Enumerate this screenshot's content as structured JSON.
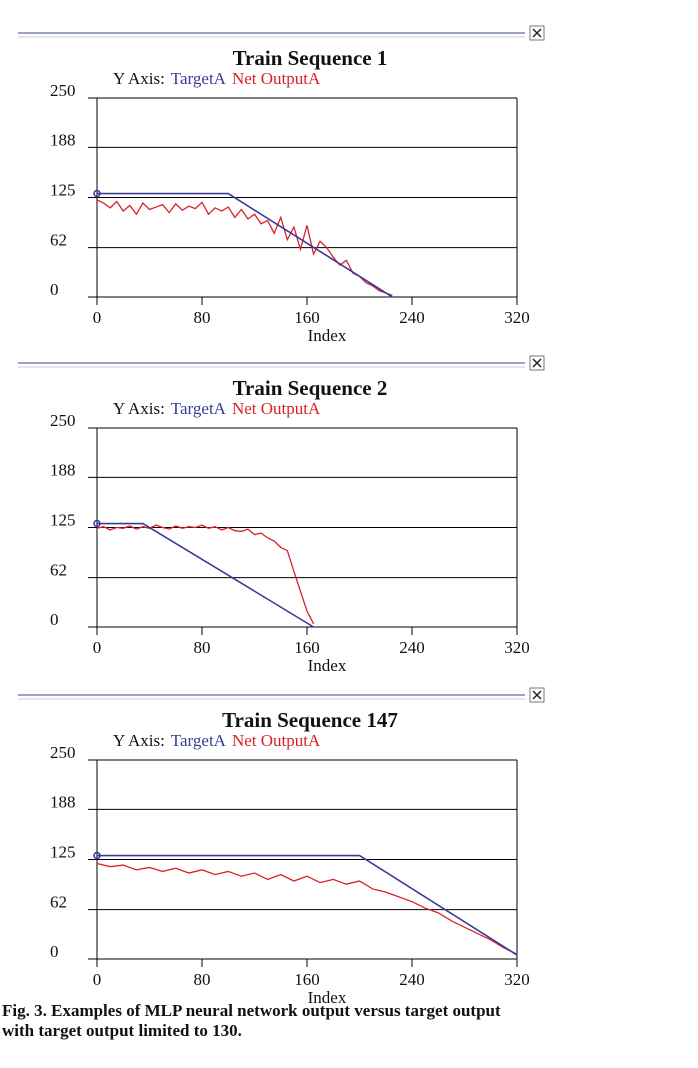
{
  "chart_data": [
    {
      "type": "line",
      "title": "Train Sequence 1",
      "legend_title": "Y Axis:",
      "xlabel": "Index",
      "xlim": [
        0,
        320
      ],
      "xticks": [
        0,
        80,
        160,
        240,
        320
      ],
      "ylim": [
        0,
        250
      ],
      "yticks": [
        0,
        62,
        125,
        188,
        250
      ],
      "grid": true,
      "series": [
        {
          "name": "TargetA",
          "color": "#3a3a9c",
          "x": [
            0,
            100,
            225
          ],
          "values": [
            130,
            130,
            0
          ]
        },
        {
          "name": "Net OutputA",
          "color": "#d8222a",
          "x": [
            0,
            5,
            10,
            15,
            20,
            25,
            30,
            35,
            40,
            45,
            50,
            55,
            60,
            65,
            70,
            75,
            80,
            85,
            90,
            95,
            100,
            105,
            110,
            115,
            120,
            125,
            130,
            135,
            140,
            145,
            150,
            155,
            160,
            165,
            170,
            175,
            180,
            185,
            190,
            195,
            200,
            205,
            210,
            215,
            220,
            225
          ],
          "values": [
            122,
            118,
            112,
            120,
            108,
            115,
            104,
            118,
            110,
            113,
            116,
            106,
            117,
            109,
            114,
            111,
            119,
            104,
            112,
            108,
            113,
            100,
            110,
            98,
            104,
            92,
            96,
            80,
            100,
            72,
            88,
            60,
            90,
            54,
            70,
            62,
            50,
            40,
            46,
            30,
            26,
            18,
            14,
            8,
            5,
            2
          ]
        }
      ]
    },
    {
      "type": "line",
      "title": "Train Sequence 2",
      "legend_title": "Y Axis:",
      "xlabel": "Index",
      "xlim": [
        0,
        320
      ],
      "xticks": [
        0,
        80,
        160,
        240,
        320
      ],
      "ylim": [
        0,
        250
      ],
      "yticks": [
        0,
        62,
        125,
        188,
        250
      ],
      "grid": true,
      "series": [
        {
          "name": "TargetA",
          "color": "#3a3a9c",
          "x": [
            0,
            35,
            165
          ],
          "values": [
            130,
            130,
            0
          ]
        },
        {
          "name": "Net OutputA",
          "color": "#d8222a",
          "x": [
            0,
            5,
            10,
            15,
            20,
            25,
            30,
            35,
            40,
            45,
            50,
            55,
            60,
            65,
            70,
            75,
            80,
            85,
            90,
            95,
            100,
            105,
            110,
            115,
            120,
            125,
            130,
            135,
            140,
            145,
            150,
            155,
            160,
            165
          ],
          "values": [
            124,
            126,
            122,
            125,
            124,
            127,
            123,
            126,
            124,
            128,
            125,
            123,
            127,
            124,
            126,
            125,
            128,
            124,
            126,
            122,
            125,
            121,
            120,
            123,
            116,
            118,
            112,
            108,
            100,
            96,
            70,
            45,
            20,
            4
          ]
        }
      ]
    },
    {
      "type": "line",
      "title": "Train Sequence 147",
      "legend_title": "Y Axis:",
      "xlabel": "Index",
      "xlim": [
        0,
        320
      ],
      "xticks": [
        0,
        80,
        160,
        240,
        320
      ],
      "ylim": [
        0,
        250
      ],
      "yticks": [
        0,
        62,
        125,
        188,
        250
      ],
      "grid": true,
      "series": [
        {
          "name": "TargetA",
          "color": "#3a3a9c",
          "x": [
            0,
            200,
            320
          ],
          "values": [
            130,
            130,
            5
          ]
        },
        {
          "name": "Net OutputA",
          "color": "#d8222a",
          "x": [
            0,
            10,
            20,
            30,
            40,
            50,
            60,
            70,
            80,
            90,
            100,
            110,
            120,
            130,
            140,
            150,
            160,
            170,
            180,
            190,
            200,
            210,
            220,
            230,
            240,
            250,
            260,
            270,
            280,
            290,
            300,
            310,
            320
          ],
          "values": [
            120,
            116,
            118,
            112,
            115,
            110,
            114,
            108,
            112,
            106,
            110,
            104,
            108,
            100,
            106,
            98,
            104,
            96,
            100,
            94,
            98,
            88,
            84,
            78,
            72,
            64,
            58,
            48,
            40,
            32,
            24,
            14,
            6
          ]
        }
      ]
    }
  ],
  "caption": [
    "Fig. 3. Examples of MLP neural network output versus target output",
    "with target output limited to 130."
  ]
}
